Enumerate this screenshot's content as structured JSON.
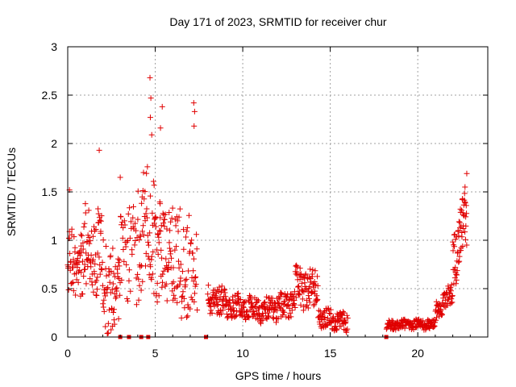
{
  "chart_data": {
    "type": "scatter",
    "title": "Day 171 of 2023, SRMTID for receiver chur",
    "xlabel": "GPS time / hours",
    "ylabel": "SRMTID / TECUs",
    "xlim": [
      0,
      24
    ],
    "ylim": [
      0,
      3
    ],
    "xticks": [
      0,
      5,
      10,
      15,
      20
    ],
    "yticks": [
      0,
      0.5,
      1,
      1.5,
      2,
      2.5,
      3
    ],
    "ytick_labels": [
      "0",
      "0.5",
      "1",
      "1.5",
      "2",
      "2.5",
      "3"
    ],
    "grid": true,
    "marker": "plus",
    "color": "#e00000",
    "zero_markers": [
      3.0,
      3.5,
      4.2,
      4.6,
      7.9,
      18.2
    ],
    "series": [
      {
        "name": "SRMTID",
        "segments": [
          {
            "t0": 0.0,
            "t1": 1.0,
            "points": 60,
            "base": 0.75,
            "amp": 0.35,
            "trend": 0.0
          },
          {
            "t0": 1.0,
            "t1": 2.0,
            "points": 60,
            "base": 0.85,
            "amp": 0.45,
            "trend": 0.1
          },
          {
            "t0": 2.0,
            "t1": 3.0,
            "points": 60,
            "base": 0.6,
            "amp": 0.45,
            "trend": -0.1
          },
          {
            "t0": 3.0,
            "t1": 4.0,
            "points": 40,
            "base": 0.8,
            "amp": 0.5,
            "trend": 0.0
          },
          {
            "t0": 4.0,
            "t1": 5.0,
            "points": 55,
            "base": 1.0,
            "amp": 0.6,
            "trend": 0.2
          },
          {
            "t0": 5.0,
            "t1": 6.0,
            "points": 60,
            "base": 0.95,
            "amp": 0.5,
            "trend": 0.0
          },
          {
            "t0": 6.0,
            "t1": 7.4,
            "points": 70,
            "base": 0.7,
            "amp": 0.55,
            "trend": 0.0
          },
          {
            "t0": 8.0,
            "t1": 9.0,
            "points": 60,
            "base": 0.4,
            "amp": 0.15,
            "trend": -0.05
          },
          {
            "t0": 9.0,
            "t1": 11.0,
            "points": 110,
            "base": 0.3,
            "amp": 0.12,
            "trend": 0.0
          },
          {
            "t0": 11.0,
            "t1": 13.0,
            "points": 110,
            "base": 0.28,
            "amp": 0.13,
            "trend": 0.05
          },
          {
            "t0": 13.0,
            "t1": 14.3,
            "points": 80,
            "base": 0.5,
            "amp": 0.2,
            "trend": 0.0
          },
          {
            "t0": 14.3,
            "t1": 16.0,
            "points": 90,
            "base": 0.22,
            "amp": 0.1,
            "trend": -0.1
          },
          {
            "t0": 18.2,
            "t1": 21.0,
            "points": 140,
            "base": 0.12,
            "amp": 0.05,
            "trend": 0.02
          },
          {
            "t0": 21.0,
            "t1": 22.0,
            "points": 60,
            "base": 0.25,
            "amp": 0.1,
            "trend": 0.2
          },
          {
            "t0": 22.0,
            "t1": 22.8,
            "points": 60,
            "base": 0.75,
            "amp": 0.3,
            "trend": 0.5
          }
        ],
        "peaks": [
          {
            "x": 4.7,
            "y": 2.68
          },
          {
            "x": 4.75,
            "y": 2.47
          },
          {
            "x": 4.72,
            "y": 2.27
          },
          {
            "x": 5.4,
            "y": 2.38
          },
          {
            "x": 5.3,
            "y": 2.16
          },
          {
            "x": 7.2,
            "y": 2.42
          },
          {
            "x": 7.25,
            "y": 2.33
          },
          {
            "x": 7.22,
            "y": 2.18
          },
          {
            "x": 1.8,
            "y": 1.93
          },
          {
            "x": 3.0,
            "y": 1.65
          },
          {
            "x": 22.8,
            "y": 1.69
          },
          {
            "x": 4.8,
            "y": 2.09
          },
          {
            "x": 0.1,
            "y": 1.52
          },
          {
            "x": 22.7,
            "y": 1.55
          }
        ]
      }
    ]
  }
}
